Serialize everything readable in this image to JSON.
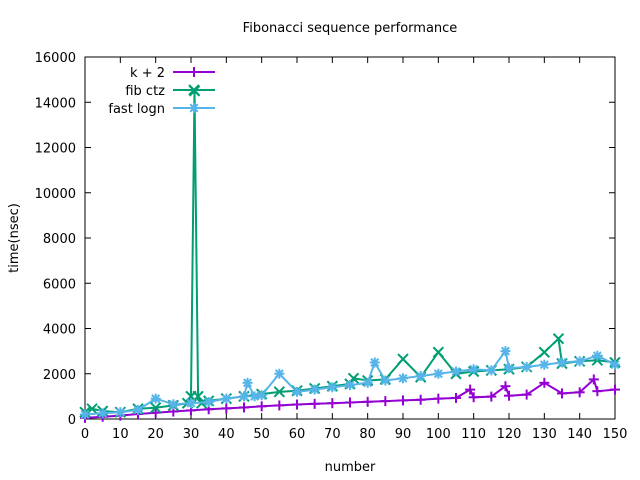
{
  "chart_data": {
    "type": "line",
    "title": "Fibonacci sequence performance",
    "xlabel": "number",
    "ylabel": "time(nsec)",
    "xlim": [
      0,
      150
    ],
    "ylim": [
      0,
      16000
    ],
    "xticks": [
      0,
      10,
      20,
      30,
      40,
      50,
      60,
      70,
      80,
      90,
      100,
      110,
      120,
      130,
      140,
      150
    ],
    "yticks": [
      0,
      2000,
      4000,
      6000,
      8000,
      10000,
      12000,
      14000,
      16000
    ],
    "grid": false,
    "legend_position": "top-left",
    "series": [
      {
        "name": "k + 2",
        "color": "#9400d3",
        "marker": "plus",
        "x": [
          0,
          5,
          10,
          15,
          20,
          25,
          30,
          35,
          40,
          45,
          50,
          55,
          60,
          65,
          70,
          75,
          80,
          85,
          90,
          95,
          100,
          105,
          109,
          110,
          115,
          119,
          120,
          125,
          130,
          135,
          140,
          144,
          145,
          150
        ],
        "y": [
          50,
          100,
          150,
          220,
          280,
          330,
          380,
          430,
          470,
          510,
          560,
          600,
          640,
          670,
          700,
          730,
          760,
          790,
          820,
          850,
          900,
          930,
          1300,
          960,
          990,
          1450,
          1030,
          1080,
          1600,
          1130,
          1180,
          1750,
          1230,
          1300
        ]
      },
      {
        "name": "fib ctz",
        "color": "#009e73",
        "marker": "cross",
        "x": [
          0,
          2,
          5,
          10,
          15,
          20,
          25,
          29,
          30,
          31,
          32,
          33,
          35,
          40,
          45,
          50,
          55,
          60,
          65,
          70,
          75,
          76,
          80,
          85,
          90,
          95,
          100,
          105,
          110,
          115,
          120,
          125,
          130,
          134,
          135,
          140,
          145,
          150
        ],
        "y": [
          300,
          450,
          350,
          300,
          450,
          500,
          600,
          700,
          1000,
          14500,
          1000,
          700,
          800,
          900,
          1000,
          1100,
          1200,
          1250,
          1350,
          1450,
          1550,
          1800,
          1700,
          1750,
          2650,
          1850,
          2950,
          2000,
          2100,
          2150,
          2200,
          2300,
          2950,
          3550,
          2450,
          2550,
          2600,
          2500
        ]
      },
      {
        "name": "fast logn",
        "color": "#56b4e9",
        "marker": "star",
        "x": [
          0,
          5,
          10,
          15,
          20,
          25,
          30,
          35,
          40,
          45,
          46,
          48,
          50,
          55,
          60,
          65,
          70,
          75,
          80,
          82,
          85,
          90,
          95,
          100,
          105,
          110,
          115,
          119,
          120,
          125,
          130,
          135,
          140,
          145,
          150
        ],
        "y": [
          200,
          250,
          300,
          400,
          900,
          650,
          700,
          750,
          900,
          1000,
          1600,
          1000,
          1050,
          2000,
          1200,
          1300,
          1400,
          1500,
          1600,
          2500,
          1700,
          1800,
          1900,
          2000,
          2100,
          2200,
          2150,
          3000,
          2250,
          2300,
          2400,
          2500,
          2550,
          2800,
          2400
        ]
      }
    ]
  }
}
